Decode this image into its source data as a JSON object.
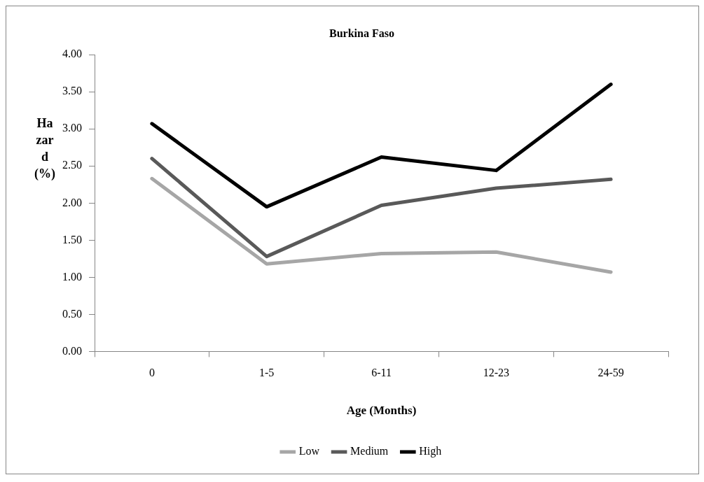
{
  "chart_data": {
    "type": "line",
    "title": "Burkina Faso",
    "xlabel": "Age (Months)",
    "ylabel": "Hazard (%)",
    "categories": [
      "0",
      "1-5",
      "6-11",
      "12-23",
      "24-59"
    ],
    "series": [
      {
        "name": "Low",
        "color": "#a6a6a6",
        "values": [
          2.33,
          1.18,
          1.32,
          1.34,
          1.07
        ]
      },
      {
        "name": "Medium",
        "color": "#595959",
        "values": [
          2.6,
          1.28,
          1.97,
          2.2,
          2.32
        ]
      },
      {
        "name": "High",
        "color": "#000000",
        "values": [
          3.07,
          1.95,
          2.62,
          2.44,
          3.6
        ]
      }
    ],
    "ylim": [
      0,
      4
    ],
    "yticks": [
      {
        "value": 0,
        "label": "0.00"
      },
      {
        "value": 0.5,
        "label": "0.50"
      },
      {
        "value": 1,
        "label": "1.00"
      },
      {
        "value": 1.5,
        "label": "1.50"
      },
      {
        "value": 2,
        "label": "2.00"
      },
      {
        "value": 2.5,
        "label": "2.50"
      },
      {
        "value": 3,
        "label": "3.00"
      },
      {
        "value": 3.5,
        "label": "3.50"
      },
      {
        "value": 4,
        "label": "4.00"
      }
    ],
    "grid": false,
    "legend": "bottom",
    "marker": "none",
    "line_style": "solid"
  }
}
